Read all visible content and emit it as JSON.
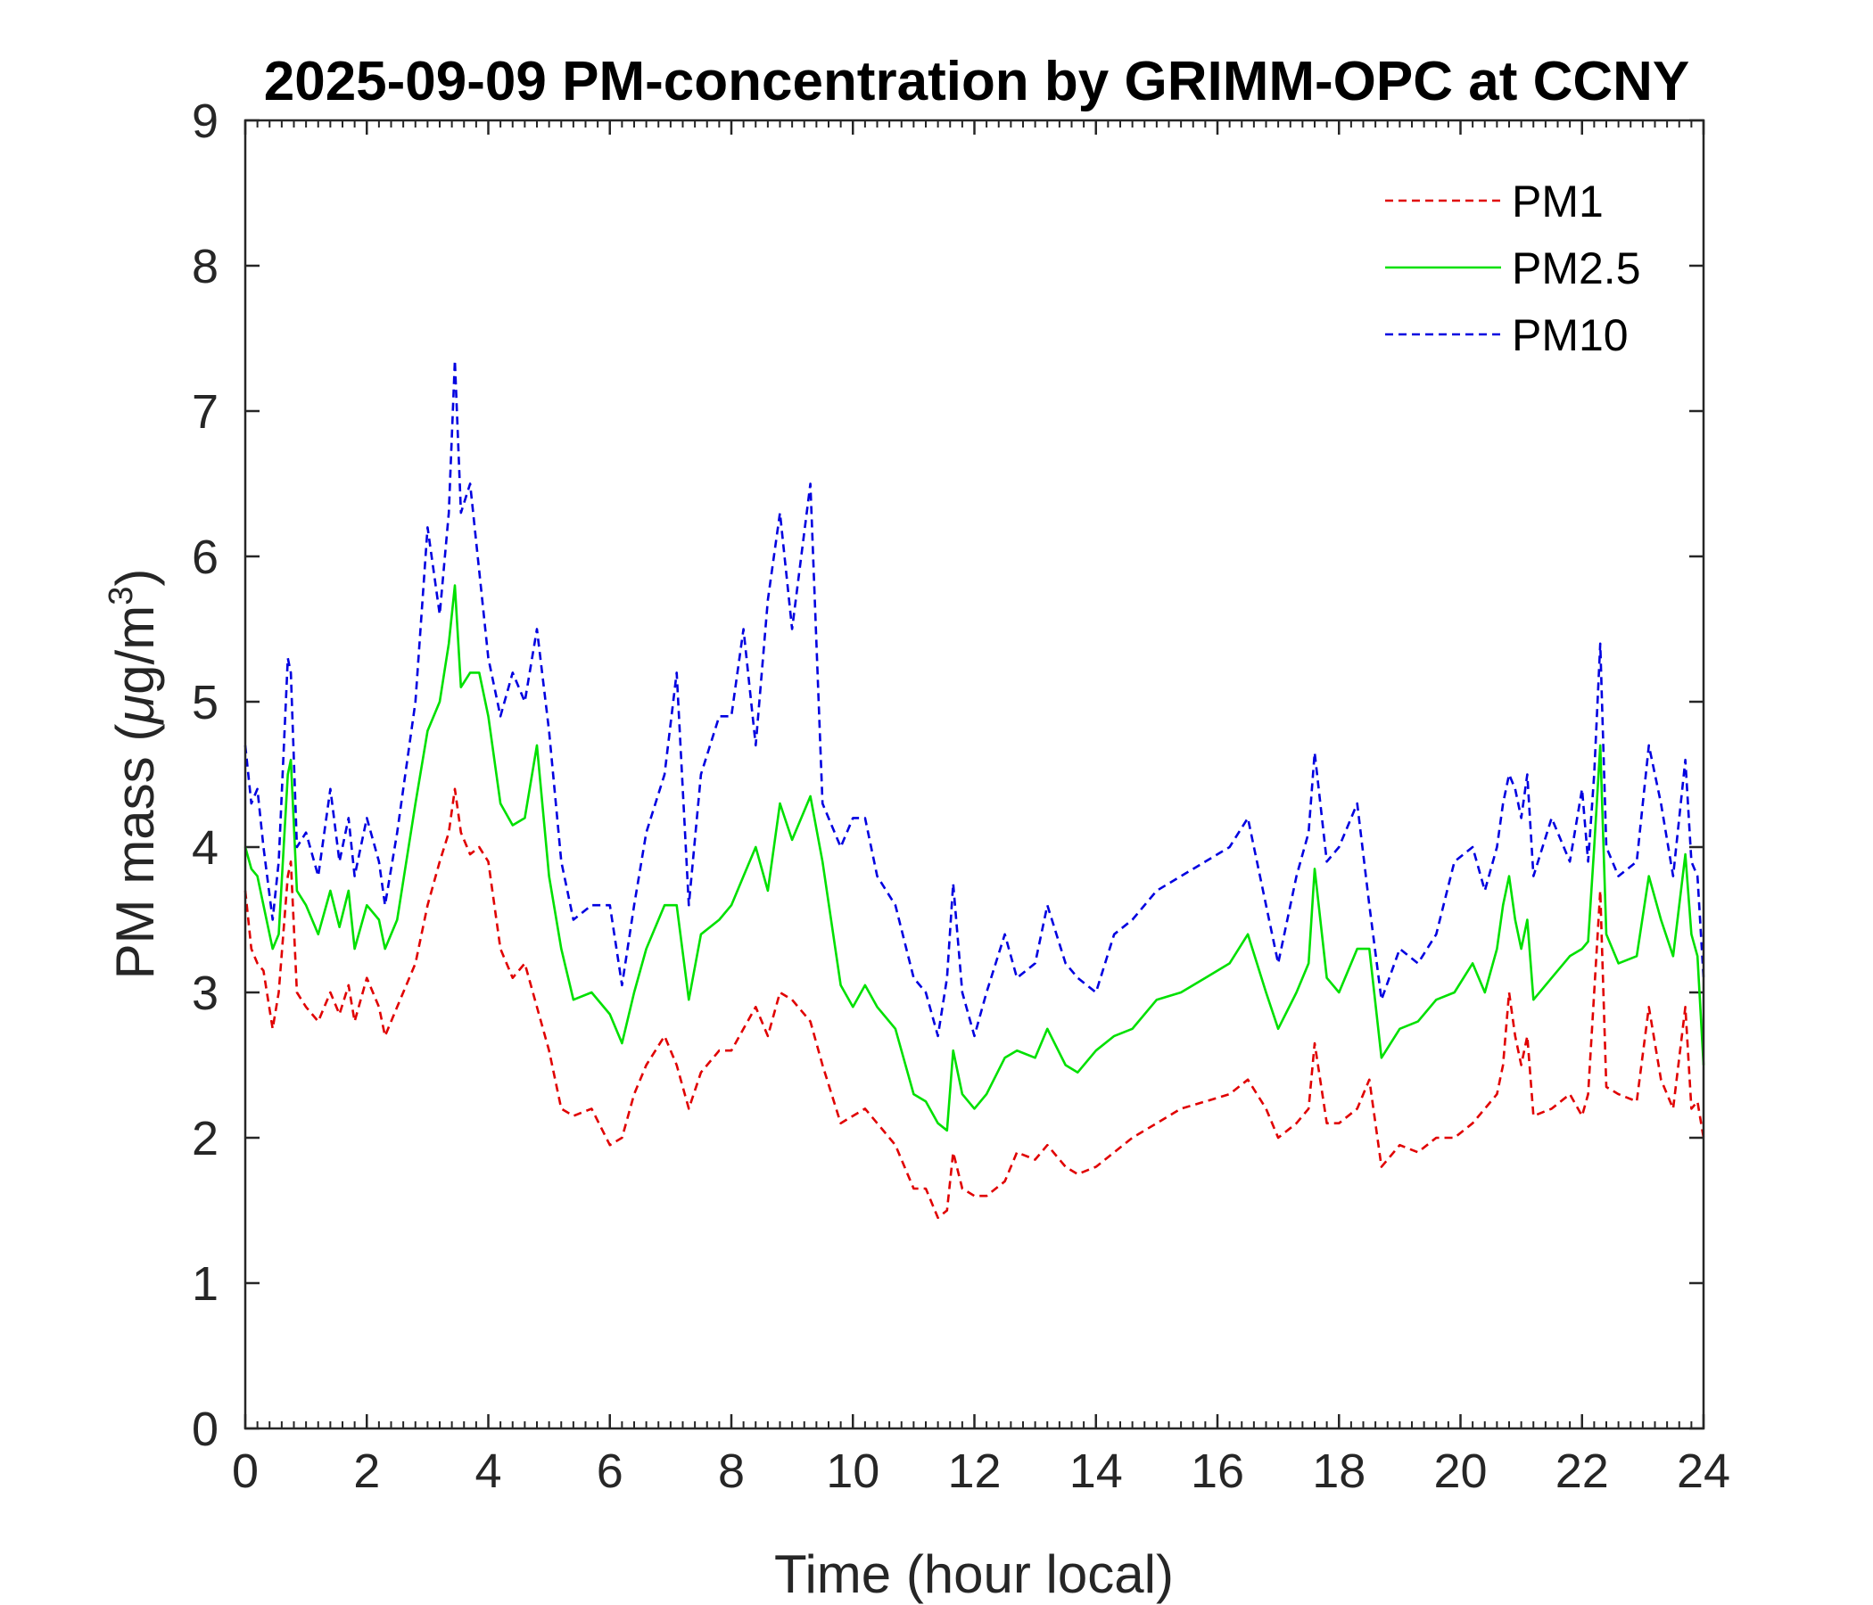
{
  "chart_data": {
    "type": "line",
    "title": "2025-09-09 PM-concentration by GRIMM-OPC at CCNY",
    "xlabel": "Time (hour local)",
    "ylabel_prefix": "PM mass (",
    "ylabel_mu": "μ",
    "ylabel_unit": "g/m",
    "ylabel_sup": "3",
    "ylabel_suffix": ")",
    "xlim": [
      0,
      24
    ],
    "ylim": [
      0,
      9
    ],
    "xticks": [
      "0",
      "2",
      "4",
      "6",
      "8",
      "10",
      "12",
      "14",
      "16",
      "18",
      "20",
      "22",
      "24"
    ],
    "yticks": [
      "0",
      "1",
      "2",
      "3",
      "4",
      "5",
      "6",
      "7",
      "8",
      "9"
    ],
    "legend_position": "top-right",
    "series": [
      {
        "name": "PM1",
        "color": "#e00000",
        "style": "dashed",
        "x": [
          0,
          0.1,
          0.2,
          0.3,
          0.45,
          0.55,
          0.7,
          0.75,
          0.85,
          1.0,
          1.2,
          1.4,
          1.55,
          1.7,
          1.8,
          2.0,
          2.2,
          2.3,
          2.5,
          2.8,
          3.0,
          3.2,
          3.35,
          3.45,
          3.55,
          3.7,
          3.85,
          4.0,
          4.2,
          4.4,
          4.6,
          4.8,
          5.0,
          5.2,
          5.4,
          5.7,
          6.0,
          6.2,
          6.4,
          6.6,
          6.9,
          7.1,
          7.3,
          7.5,
          7.8,
          8.0,
          8.2,
          8.4,
          8.6,
          8.8,
          9.0,
          9.3,
          9.5,
          9.8,
          10.0,
          10.2,
          10.4,
          10.7,
          11.0,
          11.2,
          11.4,
          11.55,
          11.65,
          11.8,
          12.0,
          12.2,
          12.5,
          12.7,
          13.0,
          13.2,
          13.5,
          13.7,
          14.0,
          14.3,
          14.6,
          15.0,
          15.4,
          15.8,
          16.2,
          16.5,
          16.8,
          17.0,
          17.3,
          17.5,
          17.6,
          17.8,
          18.0,
          18.3,
          18.5,
          18.7,
          19.0,
          19.3,
          19.6,
          19.9,
          20.2,
          20.4,
          20.6,
          20.7,
          20.8,
          20.9,
          21.0,
          21.1,
          21.2,
          21.5,
          21.8,
          22.0,
          22.1,
          22.2,
          22.3,
          22.4,
          22.6,
          22.9,
          23.1,
          23.3,
          23.5,
          23.7,
          23.8,
          23.9,
          24.0
        ],
        "y": [
          3.7,
          3.3,
          3.2,
          3.15,
          2.75,
          3.0,
          3.8,
          3.9,
          3.0,
          2.9,
          2.8,
          3.0,
          2.85,
          3.05,
          2.8,
          3.1,
          2.9,
          2.7,
          2.9,
          3.2,
          3.6,
          3.9,
          4.1,
          4.4,
          4.1,
          3.95,
          4.0,
          3.9,
          3.3,
          3.1,
          3.2,
          2.9,
          2.6,
          2.2,
          2.15,
          2.2,
          1.95,
          2.0,
          2.3,
          2.5,
          2.7,
          2.5,
          2.2,
          2.45,
          2.6,
          2.6,
          2.75,
          2.9,
          2.7,
          3.0,
          2.95,
          2.8,
          2.5,
          2.1,
          2.15,
          2.2,
          2.1,
          1.95,
          1.65,
          1.65,
          1.45,
          1.5,
          1.9,
          1.65,
          1.6,
          1.6,
          1.7,
          1.9,
          1.85,
          1.95,
          1.8,
          1.75,
          1.8,
          1.9,
          2.0,
          2.1,
          2.2,
          2.25,
          2.3,
          2.4,
          2.2,
          2.0,
          2.1,
          2.2,
          2.65,
          2.1,
          2.1,
          2.2,
          2.4,
          1.8,
          1.95,
          1.9,
          2.0,
          2.0,
          2.1,
          2.2,
          2.3,
          2.5,
          3.0,
          2.7,
          2.5,
          2.7,
          2.15,
          2.2,
          2.3,
          2.15,
          2.3,
          3.0,
          3.7,
          2.35,
          2.3,
          2.25,
          2.9,
          2.4,
          2.2,
          2.9,
          2.2,
          2.25,
          2.0
        ]
      },
      {
        "name": "PM2.5",
        "color": "#00e000",
        "style": "solid",
        "x": [
          0,
          0.1,
          0.2,
          0.3,
          0.45,
          0.55,
          0.7,
          0.75,
          0.85,
          1.0,
          1.2,
          1.4,
          1.55,
          1.7,
          1.8,
          2.0,
          2.2,
          2.3,
          2.5,
          2.8,
          3.0,
          3.2,
          3.35,
          3.45,
          3.55,
          3.7,
          3.85,
          4.0,
          4.2,
          4.4,
          4.6,
          4.8,
          5.0,
          5.2,
          5.4,
          5.7,
          6.0,
          6.2,
          6.4,
          6.6,
          6.9,
          7.1,
          7.3,
          7.5,
          7.8,
          8.0,
          8.2,
          8.4,
          8.6,
          8.8,
          9.0,
          9.3,
          9.5,
          9.8,
          10.0,
          10.2,
          10.4,
          10.7,
          11.0,
          11.2,
          11.4,
          11.55,
          11.65,
          11.8,
          12.0,
          12.2,
          12.5,
          12.7,
          13.0,
          13.2,
          13.5,
          13.7,
          14.0,
          14.3,
          14.6,
          15.0,
          15.4,
          15.8,
          16.2,
          16.5,
          16.8,
          17.0,
          17.3,
          17.5,
          17.6,
          17.8,
          18.0,
          18.3,
          18.5,
          18.7,
          19.0,
          19.3,
          19.6,
          19.9,
          20.2,
          20.4,
          20.6,
          20.7,
          20.8,
          20.9,
          21.0,
          21.1,
          21.2,
          21.5,
          21.8,
          22.0,
          22.1,
          22.2,
          22.3,
          22.4,
          22.6,
          22.9,
          23.1,
          23.3,
          23.5,
          23.7,
          23.8,
          23.9,
          24.0
        ],
        "y": [
          4.0,
          3.85,
          3.8,
          3.6,
          3.3,
          3.4,
          4.5,
          4.6,
          3.7,
          3.6,
          3.4,
          3.7,
          3.45,
          3.7,
          3.3,
          3.6,
          3.5,
          3.3,
          3.5,
          4.3,
          4.8,
          5.0,
          5.4,
          5.8,
          5.1,
          5.2,
          5.2,
          4.9,
          4.3,
          4.15,
          4.2,
          4.7,
          3.8,
          3.3,
          2.95,
          3.0,
          2.85,
          2.65,
          3.0,
          3.3,
          3.6,
          3.6,
          2.95,
          3.4,
          3.5,
          3.6,
          3.8,
          4.0,
          3.7,
          4.3,
          4.05,
          4.35,
          3.9,
          3.05,
          2.9,
          3.05,
          2.9,
          2.75,
          2.3,
          2.25,
          2.1,
          2.05,
          2.6,
          2.3,
          2.2,
          2.3,
          2.55,
          2.6,
          2.55,
          2.75,
          2.5,
          2.45,
          2.6,
          2.7,
          2.75,
          2.95,
          3.0,
          3.1,
          3.2,
          3.4,
          3.0,
          2.75,
          3.0,
          3.2,
          3.85,
          3.1,
          3.0,
          3.3,
          3.3,
          2.55,
          2.75,
          2.8,
          2.95,
          3.0,
          3.2,
          3.0,
          3.3,
          3.6,
          3.8,
          3.5,
          3.3,
          3.5,
          2.95,
          3.1,
          3.25,
          3.3,
          3.35,
          4.0,
          4.7,
          3.4,
          3.2,
          3.25,
          3.8,
          3.5,
          3.25,
          3.95,
          3.4,
          3.25,
          2.5
        ]
      },
      {
        "name": "PM10",
        "color": "#0000e0",
        "style": "dashed",
        "x": [
          0,
          0.1,
          0.2,
          0.3,
          0.45,
          0.55,
          0.7,
          0.75,
          0.85,
          1.0,
          1.2,
          1.4,
          1.55,
          1.7,
          1.8,
          2.0,
          2.2,
          2.3,
          2.5,
          2.8,
          3.0,
          3.2,
          3.35,
          3.45,
          3.55,
          3.7,
          3.85,
          4.0,
          4.2,
          4.4,
          4.6,
          4.8,
          5.0,
          5.2,
          5.4,
          5.7,
          6.0,
          6.2,
          6.4,
          6.6,
          6.9,
          7.1,
          7.3,
          7.5,
          7.8,
          8.0,
          8.2,
          8.4,
          8.6,
          8.8,
          9.0,
          9.3,
          9.5,
          9.8,
          10.0,
          10.2,
          10.4,
          10.7,
          11.0,
          11.2,
          11.4,
          11.55,
          11.65,
          11.8,
          12.0,
          12.2,
          12.5,
          12.7,
          13.0,
          13.2,
          13.5,
          13.7,
          14.0,
          14.3,
          14.6,
          15.0,
          15.4,
          15.8,
          16.2,
          16.5,
          16.8,
          17.0,
          17.3,
          17.5,
          17.6,
          17.8,
          18.0,
          18.3,
          18.5,
          18.7,
          19.0,
          19.3,
          19.6,
          19.9,
          20.2,
          20.4,
          20.6,
          20.7,
          20.8,
          20.9,
          21.0,
          21.1,
          21.2,
          21.5,
          21.8,
          22.0,
          22.1,
          22.2,
          22.3,
          22.4,
          22.6,
          22.9,
          23.1,
          23.3,
          23.5,
          23.7,
          23.8,
          23.9,
          24.0
        ],
        "y": [
          4.7,
          4.3,
          4.4,
          4.0,
          3.5,
          3.9,
          5.3,
          5.2,
          4.0,
          4.1,
          3.8,
          4.4,
          3.9,
          4.2,
          3.8,
          4.2,
          3.9,
          3.6,
          4.1,
          5.0,
          6.2,
          5.6,
          6.3,
          7.35,
          6.3,
          6.5,
          5.9,
          5.3,
          4.9,
          5.2,
          5.0,
          5.5,
          4.8,
          3.9,
          3.5,
          3.6,
          3.6,
          3.05,
          3.6,
          4.1,
          4.5,
          5.2,
          3.6,
          4.5,
          4.9,
          4.9,
          5.5,
          4.7,
          5.7,
          6.3,
          5.5,
          6.5,
          4.3,
          4.0,
          4.2,
          4.2,
          3.8,
          3.6,
          3.1,
          3.0,
          2.7,
          3.1,
          3.75,
          3.0,
          2.7,
          3.0,
          3.4,
          3.1,
          3.2,
          3.6,
          3.2,
          3.1,
          3.0,
          3.4,
          3.5,
          3.7,
          3.8,
          3.9,
          4.0,
          4.2,
          3.6,
          3.2,
          3.8,
          4.1,
          4.65,
          3.9,
          4.0,
          4.3,
          3.6,
          2.95,
          3.3,
          3.2,
          3.4,
          3.9,
          4.0,
          3.7,
          4.0,
          4.3,
          4.5,
          4.4,
          4.2,
          4.5,
          3.8,
          4.2,
          3.9,
          4.4,
          3.9,
          4.5,
          5.4,
          4.0,
          3.8,
          3.9,
          4.7,
          4.3,
          3.8,
          4.6,
          3.9,
          3.8,
          3.1
        ]
      }
    ]
  }
}
